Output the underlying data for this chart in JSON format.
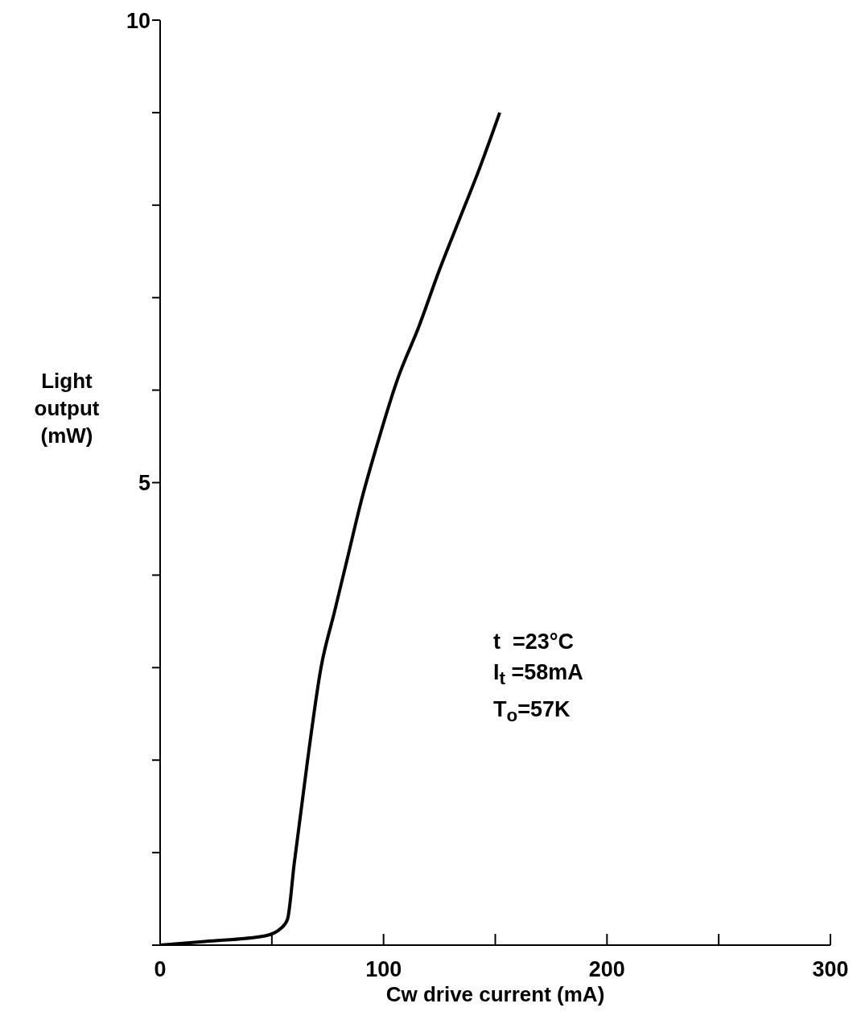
{
  "chart_data": {
    "type": "line",
    "xlabel": "Cw drive current (mA)",
    "ylabel": "Light output (mW)",
    "xlim": [
      0,
      300
    ],
    "xticks": [
      0,
      {
        "value": 50,
        "label": null
      },
      100,
      {
        "value": 150,
        "label": null
      },
      200,
      {
        "value": 250,
        "label": null
      },
      300
    ],
    "ylim": [
      0,
      10
    ],
    "yticks": [
      {
        "value": 0,
        "label": null
      },
      {
        "value": 1,
        "label": null
      },
      {
        "value": 2,
        "label": null
      },
      {
        "value": 3,
        "label": null
      },
      {
        "value": 4,
        "label": null
      },
      5,
      {
        "value": 6,
        "label": null
      },
      {
        "value": 7,
        "label": null
      },
      {
        "value": 8,
        "label": null
      },
      {
        "value": 9,
        "label": null
      },
      10
    ],
    "marker": "none",
    "line_style": "solid",
    "series": [
      {
        "color": "#000000",
        "x": [
          0,
          20,
          47,
          54,
          57,
          60,
          66,
          72,
          78,
          84,
          90,
          97,
          106,
          116,
          125,
          134,
          143,
          152
        ],
        "values": [
          0,
          0.04,
          0.1,
          0.18,
          0.28,
          0.88,
          2.0,
          3.0,
          3.6,
          4.2,
          4.8,
          5.4,
          6.1,
          6.7,
          7.3,
          7.85,
          8.4,
          9.0
        ]
      }
    ],
    "annotations": [
      "t  =23°C",
      "I$_{t}$ =58mA",
      "T$_{o}$=57K"
    ]
  }
}
